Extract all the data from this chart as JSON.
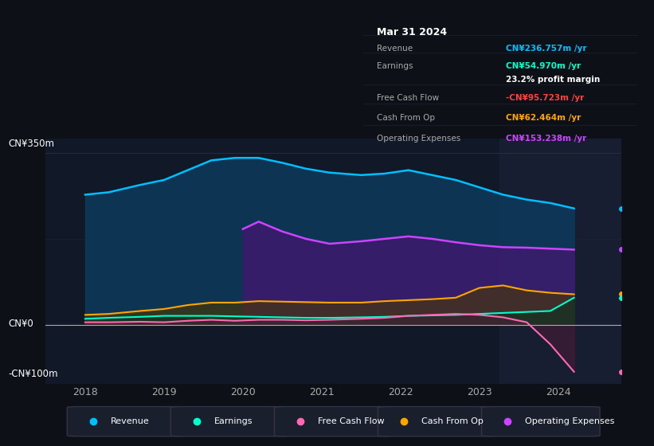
{
  "background_color": "#0d1117",
  "plot_bg_color": "#111827",
  "ylabel_top": "CN¥350m",
  "ylabel_zero": "CN¥0",
  "ylabel_bottom": "-CN¥100m",
  "ylim": [
    -120,
    380
  ],
  "xlim": [
    2017.5,
    2024.8
  ],
  "xticks": [
    2018,
    2019,
    2020,
    2021,
    2022,
    2023,
    2024
  ],
  "grid_color": "#2a3040",
  "zero_line_color": "#aaaaaa",
  "shaded_region_start": 2023.25,
  "shaded_region_color": "#1a2035",
  "legend_items": [
    {
      "label": "Revenue",
      "color": "#00bfff"
    },
    {
      "label": "Earnings",
      "color": "#00ffcc"
    },
    {
      "label": "Free Cash Flow",
      "color": "#ff69b4"
    },
    {
      "label": "Cash From Op",
      "color": "#ffa500"
    },
    {
      "label": "Operating Expenses",
      "color": "#cc44ff"
    }
  ],
  "tooltip": {
    "title": "Mar 31 2024",
    "bg_color": "#000000",
    "border_color": "#333344",
    "rows": [
      {
        "label": "Revenue",
        "value": "CN¥236.757m /yr",
        "color": "#00bfff"
      },
      {
        "label": "Earnings",
        "value": "CN¥54.970m /yr",
        "color": "#00ffcc"
      },
      {
        "label": "",
        "value": "23.2% profit margin",
        "color": "#ffffff"
      },
      {
        "label": "Free Cash Flow",
        "value": "-CN¥95.723m /yr",
        "color": "#ff4040"
      },
      {
        "label": "Cash From Op",
        "value": "CN¥62.464m /yr",
        "color": "#ffa500"
      },
      {
        "label": "Operating Expenses",
        "value": "CN¥153.238m /yr",
        "color": "#cc44ff"
      }
    ]
  },
  "revenue": {
    "x": [
      2018,
      2018.3,
      2018.7,
      2019.0,
      2019.3,
      2019.6,
      2019.9,
      2020.2,
      2020.5,
      2020.8,
      2021.1,
      2021.5,
      2021.8,
      2022.1,
      2022.4,
      2022.7,
      2023.0,
      2023.3,
      2023.6,
      2023.9,
      2024.2
    ],
    "y": [
      265,
      270,
      285,
      295,
      315,
      335,
      340,
      340,
      330,
      318,
      310,
      305,
      308,
      315,
      305,
      295,
      280,
      265,
      255,
      248,
      237
    ],
    "line_color": "#00bfff",
    "fill_color": "#0d3a5c",
    "fill_alpha": 0.85,
    "linewidth": 1.8,
    "dot_y": 237
  },
  "operating_expenses": {
    "x": [
      2020.0,
      2020.2,
      2020.5,
      2020.8,
      2021.1,
      2021.5,
      2021.8,
      2022.1,
      2022.4,
      2022.7,
      2023.0,
      2023.3,
      2023.6,
      2023.9,
      2024.2
    ],
    "y": [
      195,
      210,
      190,
      175,
      165,
      170,
      175,
      180,
      175,
      168,
      162,
      158,
      157,
      155,
      153
    ],
    "line_color": "#cc44ff",
    "fill_color": "#3d1a6e",
    "fill_alpha": 0.85,
    "linewidth": 1.8,
    "dot_y": 153
  },
  "cash_from_op": {
    "x": [
      2018,
      2018.3,
      2018.7,
      2019.0,
      2019.3,
      2019.6,
      2019.9,
      2020.2,
      2020.5,
      2020.8,
      2021.1,
      2021.5,
      2021.8,
      2022.1,
      2022.4,
      2022.7,
      2023.0,
      2023.3,
      2023.6,
      2023.9,
      2024.2
    ],
    "y": [
      20,
      22,
      28,
      32,
      40,
      45,
      45,
      48,
      47,
      46,
      45,
      45,
      48,
      50,
      52,
      55,
      75,
      80,
      70,
      65,
      62
    ],
    "line_color": "#ffa500",
    "fill_color": "#4a3800",
    "fill_alpha": 0.6,
    "linewidth": 1.5,
    "dot_y": 62
  },
  "earnings": {
    "x": [
      2018,
      2018.3,
      2018.7,
      2019.0,
      2019.3,
      2019.6,
      2019.9,
      2020.2,
      2020.5,
      2020.8,
      2021.1,
      2021.5,
      2021.8,
      2022.1,
      2022.4,
      2022.7,
      2023.0,
      2023.3,
      2023.6,
      2023.9,
      2024.2
    ],
    "y": [
      12,
      14,
      16,
      18,
      18,
      18,
      17,
      16,
      15,
      14,
      14,
      15,
      16,
      18,
      19,
      20,
      22,
      24,
      26,
      28,
      55
    ],
    "line_color": "#00ffcc",
    "fill_color": "#003322",
    "fill_alpha": 0.5,
    "linewidth": 1.5,
    "dot_y": 55
  },
  "free_cash_flow": {
    "x": [
      2018,
      2018.3,
      2018.7,
      2019.0,
      2019.3,
      2019.6,
      2019.9,
      2020.2,
      2020.5,
      2020.8,
      2021.1,
      2021.5,
      2021.8,
      2022.1,
      2022.4,
      2022.7,
      2023.0,
      2023.3,
      2023.6,
      2023.9,
      2024.2
    ],
    "y": [
      5,
      5,
      6,
      5,
      8,
      10,
      8,
      10,
      10,
      9,
      10,
      12,
      14,
      18,
      20,
      22,
      20,
      15,
      5,
      -40,
      -96
    ],
    "line_color": "#ff69b4",
    "fill_color": "#5a1a3a",
    "fill_alpha": 0.45,
    "linewidth": 1.5,
    "dot_y": -96
  }
}
